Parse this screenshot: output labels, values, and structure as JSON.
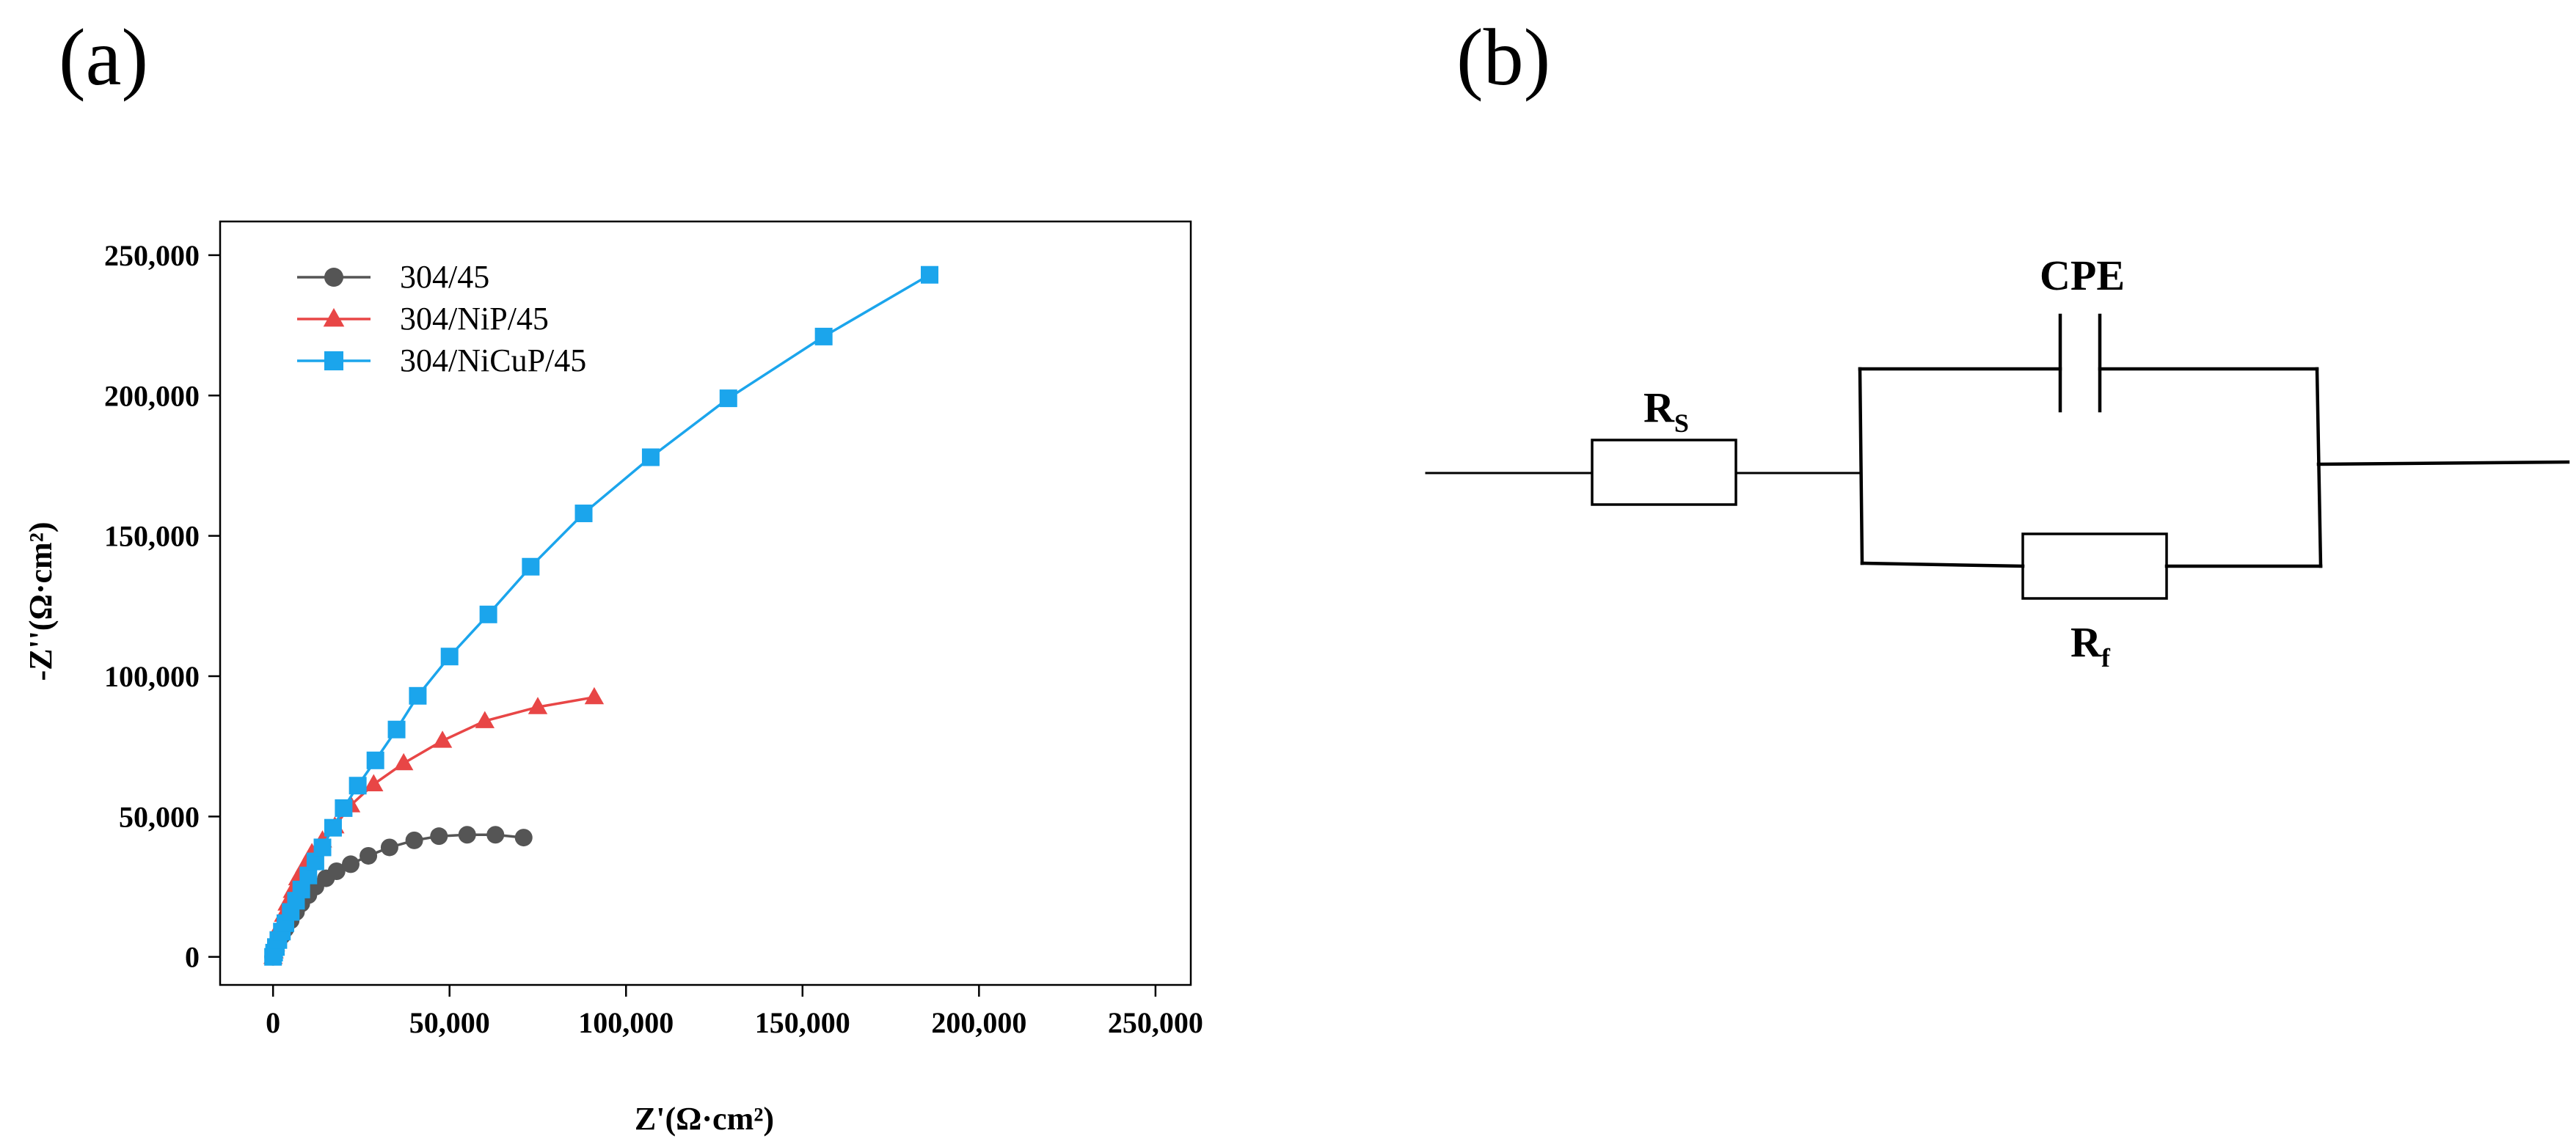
{
  "panels": {
    "a_label": "(a)",
    "b_label": "(b)"
  },
  "chart_data": {
    "type": "scatter",
    "title": "",
    "xlabel": "Z'(Ω·cm²)",
    "ylabel": "-Z''(Ω·cm²)",
    "xlim": [
      -15000,
      260000
    ],
    "ylim": [
      -10000,
      262000
    ],
    "x_ticks": [
      0,
      50000,
      100000,
      150000,
      200000,
      250000
    ],
    "y_ticks": [
      0,
      50000,
      100000,
      150000,
      200000,
      250000
    ],
    "x_tick_labels": [
      "0",
      "50,000",
      "100,000",
      "150,000",
      "200,000",
      "250,000"
    ],
    "y_tick_labels": [
      "0",
      "50,000",
      "100,000",
      "150,000",
      "200,000",
      "250,000"
    ],
    "grid": false,
    "legend_position": "top-left",
    "series": [
      {
        "name": "304/45",
        "color": "#555555",
        "marker": "circle",
        "points": [
          [
            0,
            0
          ],
          [
            300,
            1500
          ],
          [
            800,
            3000
          ],
          [
            1500,
            5000
          ],
          [
            2500,
            7500
          ],
          [
            3500,
            10000
          ],
          [
            5000,
            13000
          ],
          [
            6500,
            16000
          ],
          [
            8000,
            19000
          ],
          [
            10000,
            22000
          ],
          [
            12000,
            25000
          ],
          [
            15000,
            28000
          ],
          [
            18000,
            30500
          ],
          [
            22000,
            33000
          ],
          [
            27000,
            36000
          ],
          [
            33000,
            39000
          ],
          [
            40000,
            41500
          ],
          [
            47000,
            43000
          ],
          [
            55000,
            43500
          ],
          [
            63000,
            43500
          ],
          [
            71000,
            42500
          ]
        ]
      },
      {
        "name": "304/NiP/45",
        "color": "#e84646",
        "marker": "triangle",
        "points": [
          [
            0,
            0
          ],
          [
            300,
            2000
          ],
          [
            700,
            4500
          ],
          [
            1300,
            7500
          ],
          [
            2000,
            11000
          ],
          [
            3000,
            15000
          ],
          [
            4000,
            19000
          ],
          [
            5500,
            23500
          ],
          [
            7000,
            28000
          ],
          [
            9000,
            32500
          ],
          [
            11000,
            37000
          ],
          [
            14000,
            41500
          ],
          [
            17500,
            46500
          ],
          [
            22000,
            54000
          ],
          [
            28500,
            61500
          ],
          [
            37000,
            69000
          ],
          [
            48000,
            77000
          ],
          [
            60000,
            84000
          ],
          [
            75000,
            89000
          ],
          [
            91000,
            92500
          ]
        ]
      },
      {
        "name": "304/NiCuP/45",
        "color": "#1ba5ec",
        "marker": "square",
        "points": [
          [
            0,
            0
          ],
          [
            300,
            1500
          ],
          [
            800,
            3500
          ],
          [
            1500,
            6000
          ],
          [
            2500,
            9000
          ],
          [
            3500,
            12000
          ],
          [
            5000,
            16000
          ],
          [
            6500,
            20000
          ],
          [
            8000,
            24000
          ],
          [
            10000,
            29000
          ],
          [
            12000,
            34000
          ],
          [
            14000,
            39000
          ],
          [
            17000,
            46000
          ],
          [
            20000,
            53000
          ],
          [
            24000,
            61000
          ],
          [
            29000,
            70000
          ],
          [
            35000,
            81000
          ],
          [
            41000,
            93000
          ],
          [
            50000,
            107000
          ],
          [
            61000,
            122000
          ],
          [
            73000,
            139000
          ],
          [
            88000,
            158000
          ],
          [
            107000,
            178000
          ],
          [
            129000,
            199000
          ],
          [
            156000,
            221000
          ],
          [
            186000,
            243000
          ]
        ]
      }
    ]
  },
  "circuit": {
    "rs_main": "R",
    "rs_sub": "S",
    "cpe_label": "CPE",
    "rf_main": "R",
    "rf_sub": "f"
  }
}
